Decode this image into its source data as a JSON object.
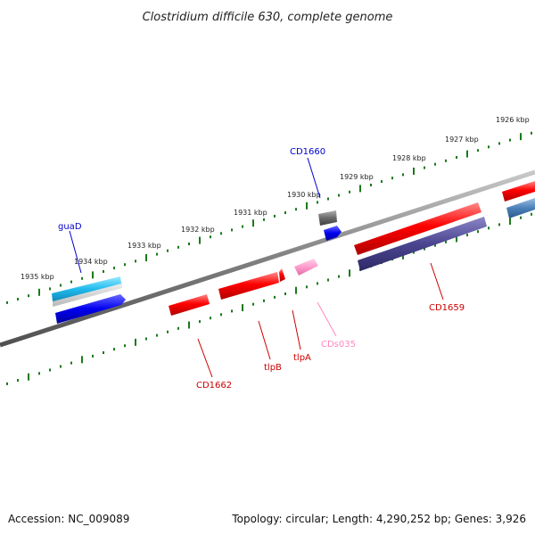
{
  "title": "Clostridium difficile 630, complete genome",
  "footer": {
    "accession": "Accession: NC_009089",
    "summary": "Topology: circular; Length: 4,290,252 bp; Genes: 3,926"
  },
  "colors": {
    "backbone": "#808080",
    "tick": "#1a7a1a",
    "forward_gene": "#ff0000",
    "blue_label": "#0000cc",
    "red_label": "#cc0000",
    "pink_label": "#ff88c0"
  },
  "scale_labels": [
    "1926 kbp",
    "1927 kbp",
    "1928 kbp",
    "1929 kbp",
    "1930 kbp",
    "1931 kbp",
    "1932 kbp",
    "1933 kbp",
    "1934 kbp",
    "1935 kbp"
  ],
  "gene_labels": [
    {
      "name": "CD1660",
      "color": "#0000cc"
    },
    {
      "name": "guaD",
      "color": "#0000cc"
    },
    {
      "name": "CDs035",
      "color": "#ff88c0"
    },
    {
      "name": "CD1659",
      "color": "#cc0000"
    },
    {
      "name": "tlpA",
      "color": "#cc0000"
    },
    {
      "name": "tlpB",
      "color": "#cc0000"
    },
    {
      "name": "CD1662",
      "color": "#cc0000"
    }
  ]
}
